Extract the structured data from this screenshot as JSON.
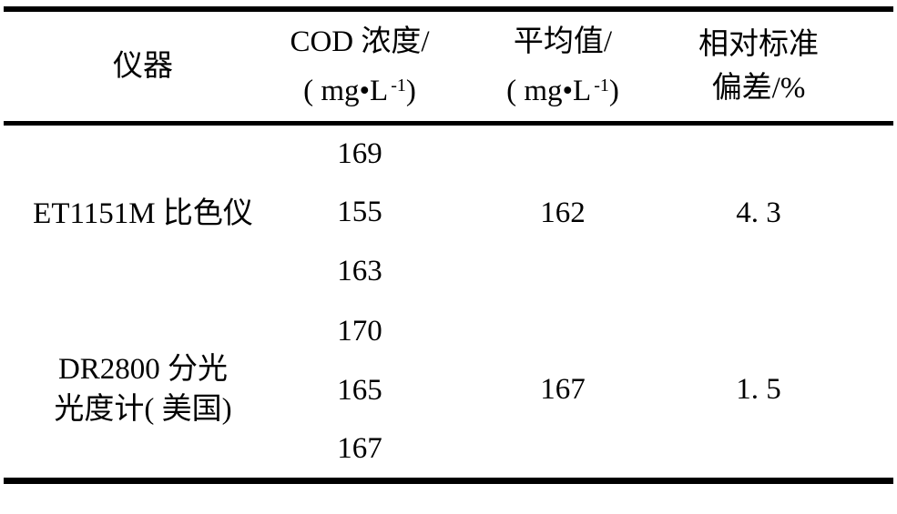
{
  "colors": {
    "background": "#ffffff",
    "text": "#000000",
    "rule": "#000000"
  },
  "table": {
    "header": {
      "instrument": "仪器",
      "cod": {
        "line1": "COD 浓度/",
        "unit_base": "( mg•L",
        "unit_sup": "-1",
        "unit_close": ")"
      },
      "average": {
        "line1": "平均值/",
        "unit_base": "( mg•L",
        "unit_sup": "-1",
        "unit_close": ")"
      },
      "rsd": {
        "line1": "相对标准",
        "line2": "偏差/%"
      }
    },
    "groups": [
      {
        "instrument": "ET1151M 比色仪",
        "values": [
          "169",
          "155",
          "163"
        ],
        "average": "162",
        "rsd": "4. 3"
      },
      {
        "instrument": "DR2800 分光\n光度计( 美国)",
        "values": [
          "170",
          "165",
          "167"
        ],
        "average": "167",
        "rsd": "1. 5"
      }
    ]
  }
}
